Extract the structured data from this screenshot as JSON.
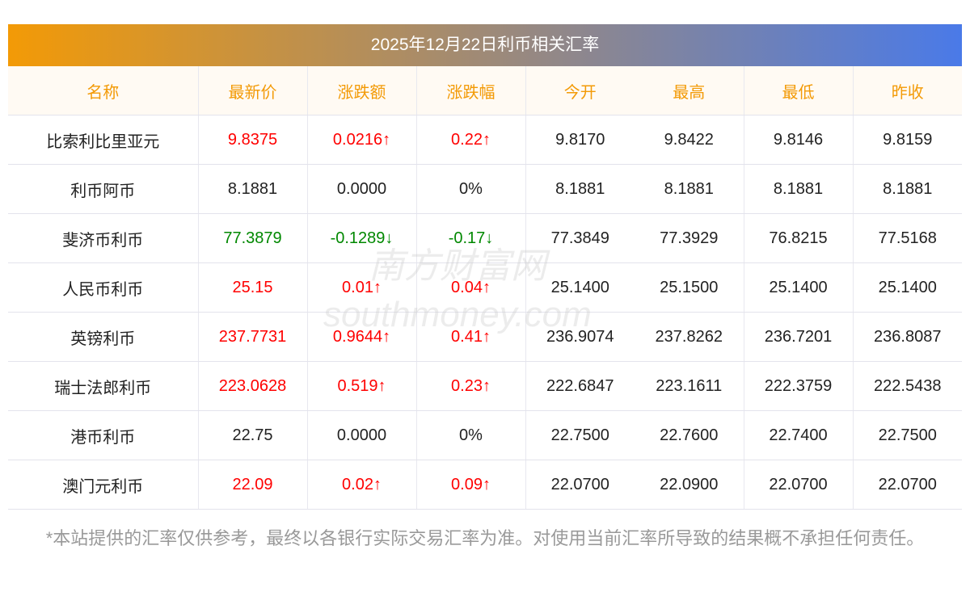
{
  "title": "2025年12月22日利币相关汇率",
  "headers": [
    "名称",
    "最新价",
    "涨跌额",
    "涨跌幅",
    "今开",
    "最高",
    "最低",
    "昨收"
  ],
  "rows": [
    {
      "name": "比索利比里亚元",
      "latest": "9.8375",
      "change": "0.0216↑",
      "pct": "0.22↑",
      "open": "9.8170",
      "high": "9.8422",
      "low": "9.8146",
      "prev": "9.8159",
      "dir": "up"
    },
    {
      "name": "利币阿币",
      "latest": "8.1881",
      "change": "0.0000",
      "pct": "0%",
      "open": "8.1881",
      "high": "8.1881",
      "low": "8.1881",
      "prev": "8.1881",
      "dir": "flat"
    },
    {
      "name": "斐济币利币",
      "latest": "77.3879",
      "change": "-0.1289↓",
      "pct": "-0.17↓",
      "open": "77.3849",
      "high": "77.3929",
      "low": "76.8215",
      "prev": "77.5168",
      "dir": "down"
    },
    {
      "name": "人民币利币",
      "latest": "25.15",
      "change": "0.01↑",
      "pct": "0.04↑",
      "open": "25.1400",
      "high": "25.1500",
      "low": "25.1400",
      "prev": "25.1400",
      "dir": "up"
    },
    {
      "name": "英镑利币",
      "latest": "237.7731",
      "change": "0.9644↑",
      "pct": "0.41↑",
      "open": "236.9074",
      "high": "237.8262",
      "low": "236.7201",
      "prev": "236.8087",
      "dir": "up"
    },
    {
      "name": "瑞士法郎利币",
      "latest": "223.0628",
      "change": "0.519↑",
      "pct": "0.23↑",
      "open": "222.6847",
      "high": "223.1611",
      "low": "222.3759",
      "prev": "222.5438",
      "dir": "up"
    },
    {
      "name": "港币利币",
      "latest": "22.75",
      "change": "0.0000",
      "pct": "0%",
      "open": "22.7500",
      "high": "22.7600",
      "low": "22.7400",
      "prev": "22.7500",
      "dir": "flat"
    },
    {
      "name": "澳门元利币",
      "latest": "22.09",
      "change": "0.02↑",
      "pct": "0.09↑",
      "open": "22.0700",
      "high": "22.0900",
      "low": "22.0700",
      "prev": "22.0700",
      "dir": "up"
    }
  ],
  "note": "*本站提供的汇率仅供参考，最终以各银行实际交易汇率为准。对使用当前汇率所导致的结果概不承担任何责任。",
  "watermark": {
    "cn": "南方财富网",
    "en": "southmoney.com"
  },
  "colors": {
    "up": "#ff0000",
    "down": "#008800",
    "header": "#f39a06"
  }
}
